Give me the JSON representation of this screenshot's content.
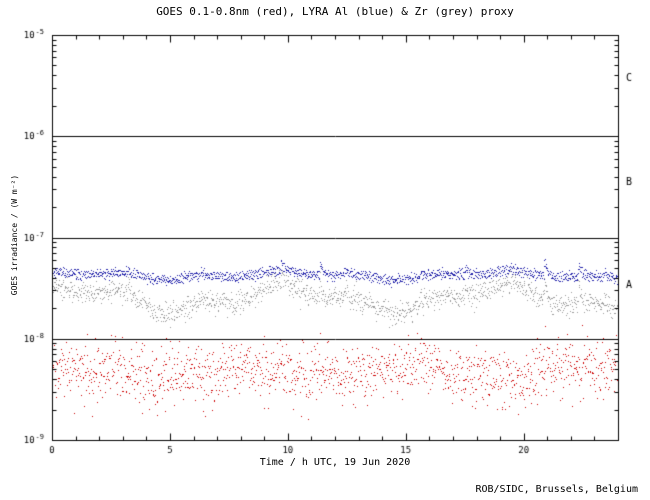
{
  "title": "GOES 0.1-0.8nm (red), LYRA Al (blue) & Zr (grey) proxy",
  "footer": "ROB/SIDC, Brussels, Belgium",
  "chart_data": {
    "type": "scatter",
    "title": "GOES 0.1-0.8nm (red), LYRA Al (blue) & Zr (grey) proxy",
    "xlabel": "Time / h UTC, 19 Jun 2020",
    "ylabel": "GOES irradiance / (W m⁻²)",
    "x_range": [
      0,
      24
    ],
    "x_major_ticks": [
      0,
      5,
      10,
      15,
      20
    ],
    "x_minor_step": 1,
    "y_scale": "log10",
    "y_tick_exponents": [
      -5,
      -6,
      -7,
      -8,
      -9
    ],
    "y_range_exponents": [
      -9,
      -5
    ],
    "grid": false,
    "frame_color": "#000000",
    "flux_class_lines": [
      {
        "label": "C",
        "boundary_exp": -6,
        "label_exp": -5.42
      },
      {
        "label": "B",
        "boundary_exp": -7,
        "label_exp": -6.45
      },
      {
        "label": "A",
        "boundary_exp": -8,
        "label_exp": -7.47
      }
    ],
    "seed": 20200619,
    "series": [
      {
        "name": "LYRA Zr proxy",
        "color": "#9a9a9a",
        "n_points": 1440,
        "base_exp": -7.6,
        "noise_sd": 0.055,
        "band_split": 0,
        "wander": [
          {
            "period": 9.0,
            "amp": 0.1,
            "phase": 0.9
          },
          {
            "period": 3.3,
            "amp": 0.05,
            "phase": 2.1
          }
        ],
        "spikes": [
          {
            "t": 3.2,
            "amp": 0.06,
            "tau": 0.12
          },
          {
            "t": 6.3,
            "amp": 0.06,
            "tau": 0.12
          },
          {
            "t": 9.7,
            "amp": 0.15,
            "tau": 0.12
          },
          {
            "t": 11.35,
            "amp": 0.16,
            "tau": 0.12
          },
          {
            "t": 12.4,
            "amp": 0.08,
            "tau": 0.12
          },
          {
            "t": 15.6,
            "amp": 0.06,
            "tau": 0.12
          },
          {
            "t": 17.5,
            "amp": 0.11,
            "tau": 0.12
          },
          {
            "t": 19.4,
            "amp": 0.08,
            "tau": 0.12
          },
          {
            "t": 20.85,
            "amp": 0.24,
            "tau": 0.12
          },
          {
            "t": 22.3,
            "amp": 0.17,
            "tau": 0.12
          },
          {
            "t": 23.4,
            "amp": 0.1,
            "tau": 0.12
          }
        ]
      },
      {
        "name": "LYRA Al proxy",
        "color": "#2222aa",
        "n_points": 1440,
        "base_exp": -7.37,
        "noise_sd": 0.018,
        "band_split": 0.02,
        "wander": [
          {
            "period": 9.0,
            "amp": 0.03,
            "phase": 0.9
          },
          {
            "period": 3.3,
            "amp": 0.018,
            "phase": 2.1
          }
        ],
        "spikes": [
          {
            "t": 3.2,
            "amp": 0.05,
            "tau": 0.12
          },
          {
            "t": 6.3,
            "amp": 0.05,
            "tau": 0.12
          },
          {
            "t": 9.7,
            "amp": 0.12,
            "tau": 0.12
          },
          {
            "t": 11.35,
            "amp": 0.13,
            "tau": 0.12
          },
          {
            "t": 12.4,
            "amp": 0.06,
            "tau": 0.12
          },
          {
            "t": 15.6,
            "amp": 0.05,
            "tau": 0.12
          },
          {
            "t": 17.5,
            "amp": 0.09,
            "tau": 0.12
          },
          {
            "t": 19.4,
            "amp": 0.06,
            "tau": 0.12
          },
          {
            "t": 20.85,
            "amp": 0.2,
            "tau": 0.12
          },
          {
            "t": 22.3,
            "amp": 0.14,
            "tau": 0.12
          },
          {
            "t": 23.4,
            "amp": 0.08,
            "tau": 0.12
          }
        ]
      },
      {
        "name": "GOES 0.1-0.8nm",
        "color": "#cc0000",
        "n_points": 1440,
        "base_exp": -8.33,
        "noise_sd": 0.14,
        "band_split": 0,
        "wander": [
          {
            "period": 7.0,
            "amp": 0.05,
            "phase": 0.4
          },
          {
            "period": 2.6,
            "amp": 0.03,
            "phase": 1.0
          }
        ],
        "spikes": [
          {
            "t": 10.82,
            "amp": -0.55,
            "tau": 0.05
          },
          {
            "t": 10.95,
            "amp": 0.12,
            "tau": 1.2
          },
          {
            "t": 13.8,
            "amp": 0.1,
            "tau": 0.4
          }
        ]
      }
    ]
  }
}
